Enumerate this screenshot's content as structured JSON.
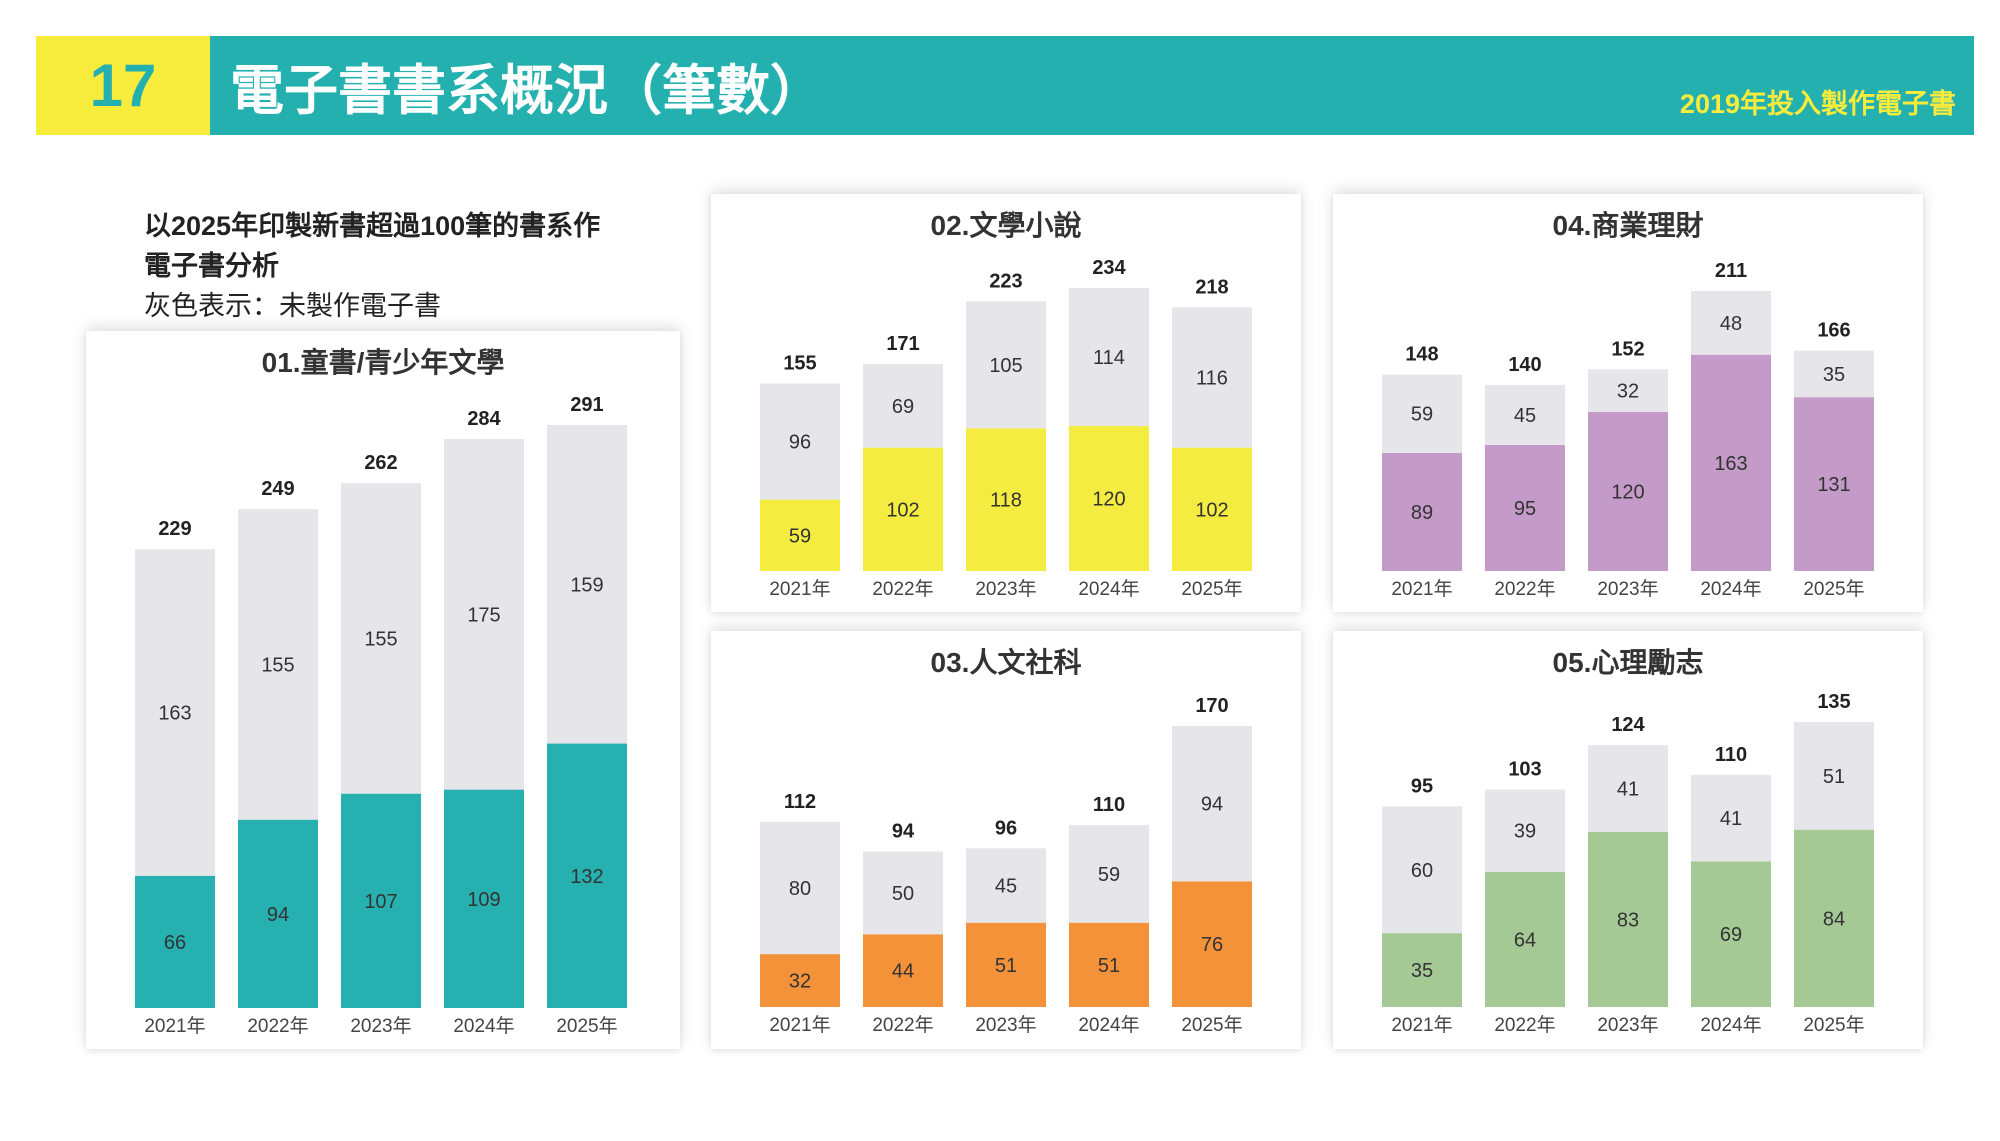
{
  "header": {
    "number": "17",
    "title": "電子書書系概況（筆數）",
    "subtitle": "2019年投入製作電子書"
  },
  "intro": {
    "line1": "以2025年印製新書超過100筆的書系作",
    "line2": "電子書分析",
    "note": "灰色表示：未製作電子書"
  },
  "colors": {
    "gray": "#E6E5E9",
    "teal": "#27B0B0",
    "yellow": "#F5EC42",
    "purple": "#C49BC8",
    "orange": "#F4923A",
    "green": "#A5C995"
  },
  "chart_data": [
    {
      "type": "bar",
      "stacked": true,
      "title": "01.童書/青少年文學",
      "color": "#27B0B0",
      "categories": [
        "2021年",
        "2022年",
        "2023年",
        "2024年",
        "2025年"
      ],
      "series": [
        {
          "name": "電子書",
          "values": [
            66,
            94,
            107,
            109,
            132
          ]
        },
        {
          "name": "未製作電子書",
          "values": [
            163,
            155,
            155,
            175,
            159
          ]
        }
      ],
      "totals": [
        229,
        249,
        262,
        284,
        291
      ]
    },
    {
      "type": "bar",
      "stacked": true,
      "title": "02.文學小說",
      "color": "#F5EC42",
      "categories": [
        "2021年",
        "2022年",
        "2023年",
        "2024年",
        "2025年"
      ],
      "series": [
        {
          "name": "電子書",
          "values": [
            59,
            102,
            118,
            120,
            102
          ]
        },
        {
          "name": "未製作電子書",
          "values": [
            96,
            69,
            105,
            114,
            116
          ]
        }
      ],
      "totals": [
        155,
        171,
        223,
        234,
        218
      ]
    },
    {
      "type": "bar",
      "stacked": true,
      "title": "03.人文社科",
      "color": "#F4923A",
      "categories": [
        "2021年",
        "2022年",
        "2023年",
        "2024年",
        "2025年"
      ],
      "series": [
        {
          "name": "電子書",
          "values": [
            32,
            44,
            51,
            51,
            76
          ]
        },
        {
          "name": "未製作電子書",
          "values": [
            80,
            50,
            45,
            59,
            94
          ]
        }
      ],
      "totals": [
        112,
        94,
        96,
        110,
        170
      ]
    },
    {
      "type": "bar",
      "stacked": true,
      "title": "04.商業理財",
      "color": "#C49BC8",
      "categories": [
        "2021年",
        "2022年",
        "2023年",
        "2024年",
        "2025年"
      ],
      "series": [
        {
          "name": "電子書",
          "values": [
            89,
            95,
            120,
            163,
            131
          ]
        },
        {
          "name": "未製作電子書",
          "values": [
            59,
            45,
            32,
            48,
            35
          ]
        }
      ],
      "totals": [
        148,
        140,
        152,
        211,
        166
      ]
    },
    {
      "type": "bar",
      "stacked": true,
      "title": "05.心理勵志",
      "color": "#A5C995",
      "categories": [
        "2021年",
        "2022年",
        "2023年",
        "2024年",
        "2025年"
      ],
      "series": [
        {
          "name": "電子書",
          "values": [
            35,
            64,
            83,
            69,
            84
          ]
        },
        {
          "name": "未製作電子書",
          "values": [
            60,
            39,
            41,
            41,
            51
          ]
        }
      ],
      "totals": [
        95,
        103,
        124,
        110,
        135
      ]
    }
  ]
}
